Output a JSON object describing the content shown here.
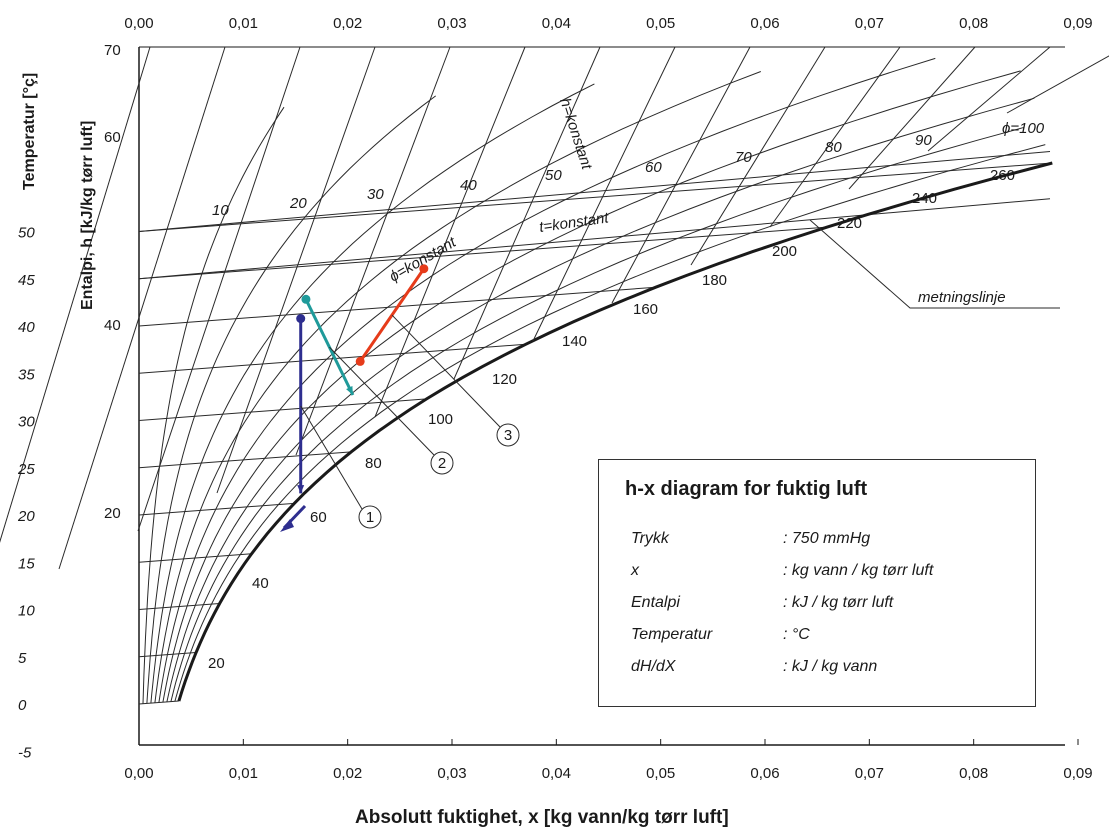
{
  "chart_data": {
    "type": "line",
    "title": "h-x diagram for fuktig luft",
    "xlabel": "Absolutt fuktighet, x [kg vann/kg tørr luft]",
    "ylabel_temperature": "Temperatur [°ç]",
    "ylabel_enthalpy": "Entalpi, h [kJ/kg tørr luft]",
    "xlim": [
      0,
      0.09
    ],
    "ylim_temperature": [
      -5,
      70
    ],
    "x_tick_labels": [
      "0,00",
      "0,01",
      "0,02",
      "0,03",
      "0,04",
      "0,05",
      "0,06",
      "0,07",
      "0,08",
      "0,09"
    ],
    "temperature_tick_labels": [
      "-5",
      "0",
      "5",
      "10",
      "15",
      "20",
      "25",
      "30",
      "35",
      "40",
      "45",
      "50"
    ],
    "enthalpy_tick_labels": [
      "70",
      "60",
      "40",
      "20"
    ],
    "grid": false,
    "curves": {
      "relative_humidity_labels": [
        "10",
        "20",
        "30",
        "40",
        "50",
        "60",
        "70",
        "80",
        "90",
        "ϕ=100"
      ],
      "relative_humidity_values": [
        10,
        20,
        30,
        40,
        50,
        60,
        70,
        80,
        90,
        100
      ],
      "direction_scale_labels": [
        "20",
        "40",
        "60",
        "80",
        "100",
        "120",
        "140",
        "160",
        "180",
        "200",
        "220",
        "240",
        "260"
      ],
      "annotations": {
        "h_const": "h=konstant",
        "t_const": "t=konstant",
        "phi_const": "ϕ=konstant",
        "saturation": "metningslinje"
      }
    },
    "process_lines": [
      {
        "label": "1",
        "color": "#2e2e8f",
        "points": [
          [
            0.0155,
            39.5
          ],
          [
            0.0155,
            21.0
          ]
        ],
        "end": "arrow"
      },
      {
        "label": "2",
        "color": "#1f9a9a",
        "points": [
          [
            0.016,
            41.5
          ],
          [
            0.0205,
            31.0
          ]
        ],
        "end": "arrow"
      },
      {
        "label": "3",
        "color": "#e63b1a",
        "points": [
          [
            0.0212,
            34.5
          ],
          [
            0.0273,
            43.8
          ]
        ],
        "end": "dot"
      }
    ],
    "legend": {
      "placement": "bottom-right",
      "rows": [
        {
          "key": "Trykk",
          "value": ": 750 mmHg"
        },
        {
          "key": "x",
          "value": ": kg vann / kg tørr luft"
        },
        {
          "key": "Entalpi",
          "value": ": kJ / kg tørr luft"
        },
        {
          "key": "Temperatur",
          "value": ": °C"
        },
        {
          "key": "dH/dX",
          "value": ": kJ / kg vann"
        }
      ]
    }
  }
}
